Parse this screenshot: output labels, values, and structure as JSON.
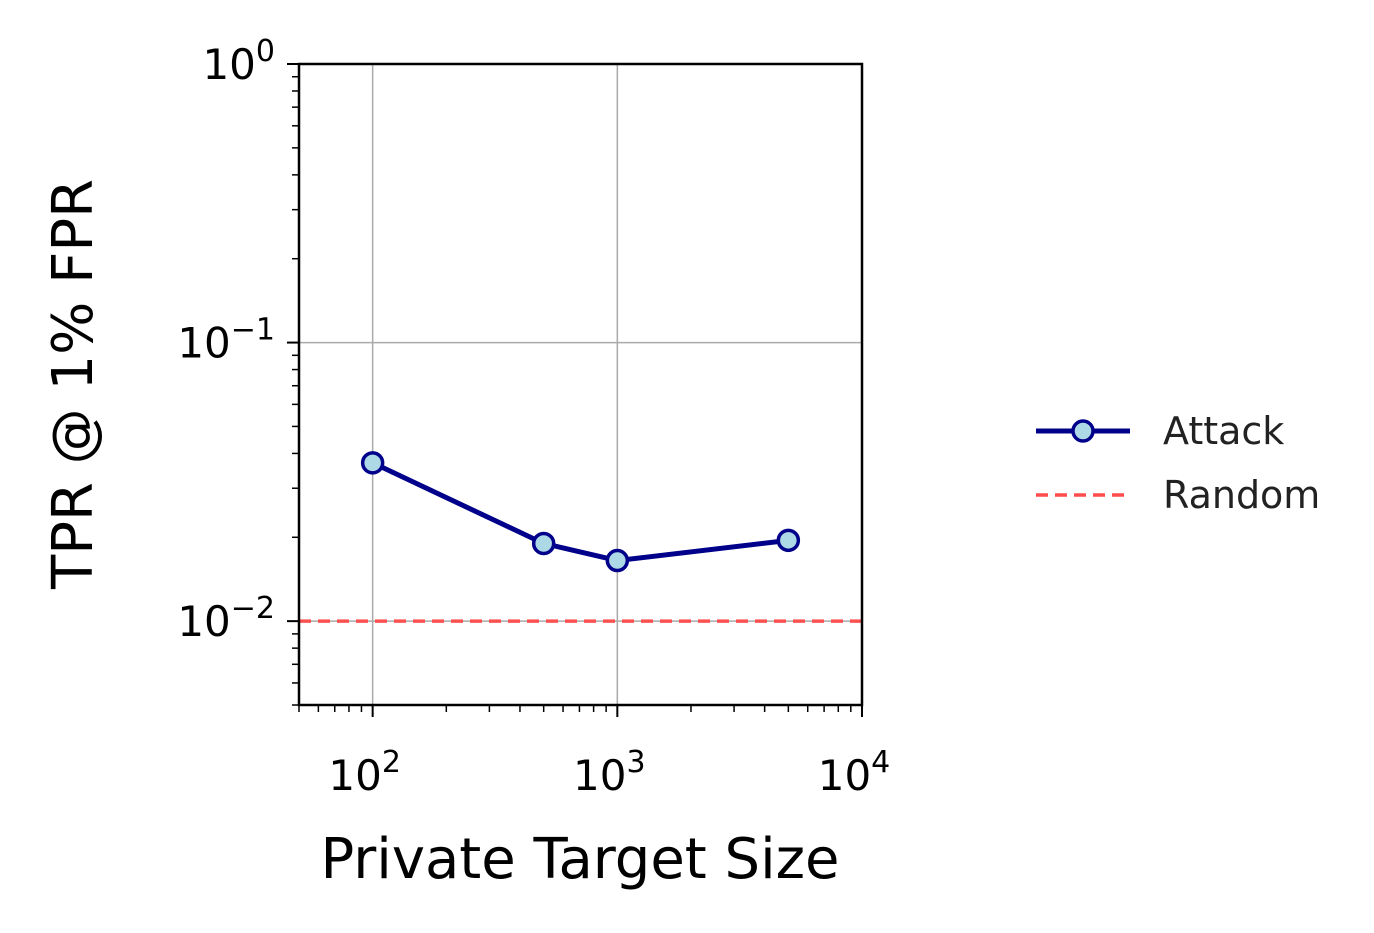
{
  "chart_data": {
    "type": "line",
    "x_scale": "log",
    "y_scale": "log",
    "xlabel": "Private Target Size",
    "ylabel": "TPR @ 1% FPR",
    "xlim": [
      50,
      10000
    ],
    "ylim": [
      0.005,
      1
    ],
    "grid": true,
    "x_tick_labels": [
      {
        "value": 100,
        "base": "10",
        "exp": "2"
      },
      {
        "value": 1000,
        "base": "10",
        "exp": "3"
      },
      {
        "value": 10000,
        "base": "10",
        "exp": "4"
      }
    ],
    "y_tick_labels": [
      {
        "value": 0.01,
        "base": "10",
        "exp": "−2"
      },
      {
        "value": 0.1,
        "base": "10",
        "exp": "−1"
      },
      {
        "value": 1,
        "base": "10",
        "exp": "0"
      }
    ],
    "series": [
      {
        "name": "Attack",
        "x": [
          100,
          500,
          1000,
          5000
        ],
        "y": [
          0.037,
          0.019,
          0.0165,
          0.0195
        ],
        "color": "#00008b",
        "marker_fill": "#add8e6",
        "style": "solid"
      }
    ],
    "reference_lines": [
      {
        "name": "Random",
        "y": 0.01,
        "color": "#ff4c4c",
        "style": "dashed"
      }
    ],
    "legend": {
      "placement": "right-outside"
    }
  }
}
